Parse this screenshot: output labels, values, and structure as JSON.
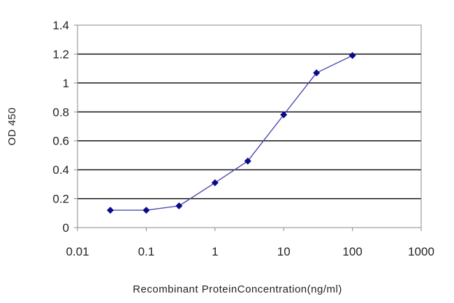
{
  "chart_data": {
    "type": "line",
    "title": "",
    "xlabel": "Recombinant ProteinConcentration(ng/ml)",
    "ylabel": "OD 450",
    "x_scale": "log",
    "xlim": [
      0.01,
      1000
    ],
    "ylim": [
      0,
      1.4
    ],
    "x_ticks": [
      "0.01",
      "0.1",
      "1",
      "10",
      "100",
      "1000"
    ],
    "y_ticks": [
      "0",
      "0.2",
      "0.4",
      "0.6",
      "0.8",
      "1",
      "1.2",
      "1.4"
    ],
    "grid": "horizontal",
    "legend": "none",
    "series": [
      {
        "x": [
          0.03,
          0.1,
          0.3,
          1,
          3,
          10,
          30,
          100
        ],
        "y": [
          0.12,
          0.12,
          0.15,
          0.31,
          0.46,
          0.78,
          1.07,
          1.19
        ]
      }
    ],
    "colors": {
      "line": "#4a4ab0",
      "marker": "#0a0a8c",
      "grid": "#000000",
      "frame": "#888888"
    }
  }
}
